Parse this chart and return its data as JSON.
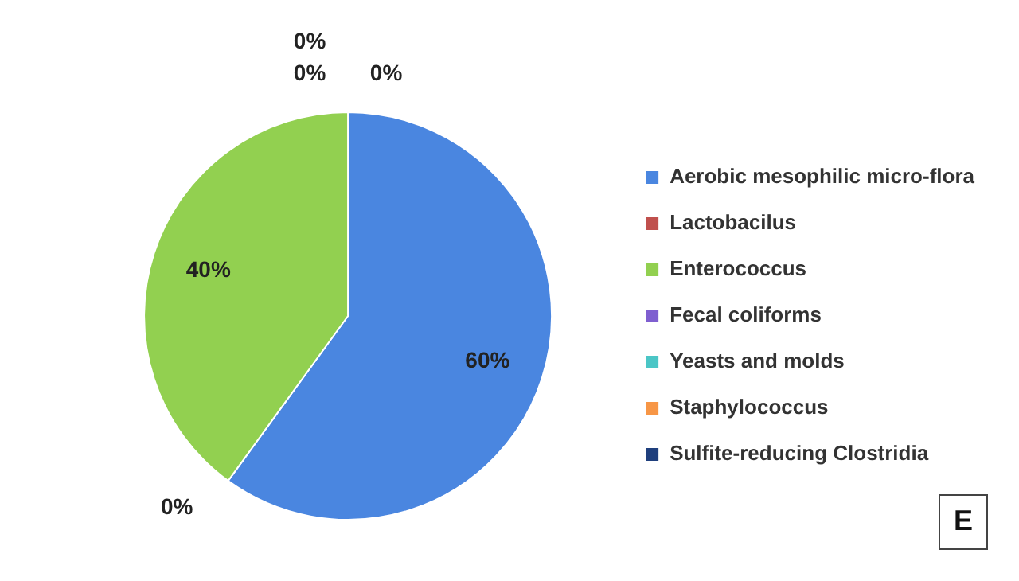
{
  "chart_data": {
    "type": "pie",
    "categories": [
      "Aerobic mesophilic micro-flora",
      "Lactobacilus",
      "Enterococcus",
      "Fecal coliforms",
      "Yeasts and molds",
      "Staphylococcus",
      "Sulfite-reducing Clostridia"
    ],
    "values": [
      60,
      0,
      40,
      0,
      0,
      0,
      0
    ],
    "colors": [
      "#4a86e0",
      "#c0504d",
      "#92d050",
      "#7f5fd0",
      "#4bc6c6",
      "#f79646",
      "#1f3f7d"
    ],
    "value_labels": [
      "60%",
      "0%",
      "40%",
      "0%",
      "0%",
      "0%",
      null
    ],
    "legend": "right",
    "annotations": [
      "E"
    ]
  }
}
